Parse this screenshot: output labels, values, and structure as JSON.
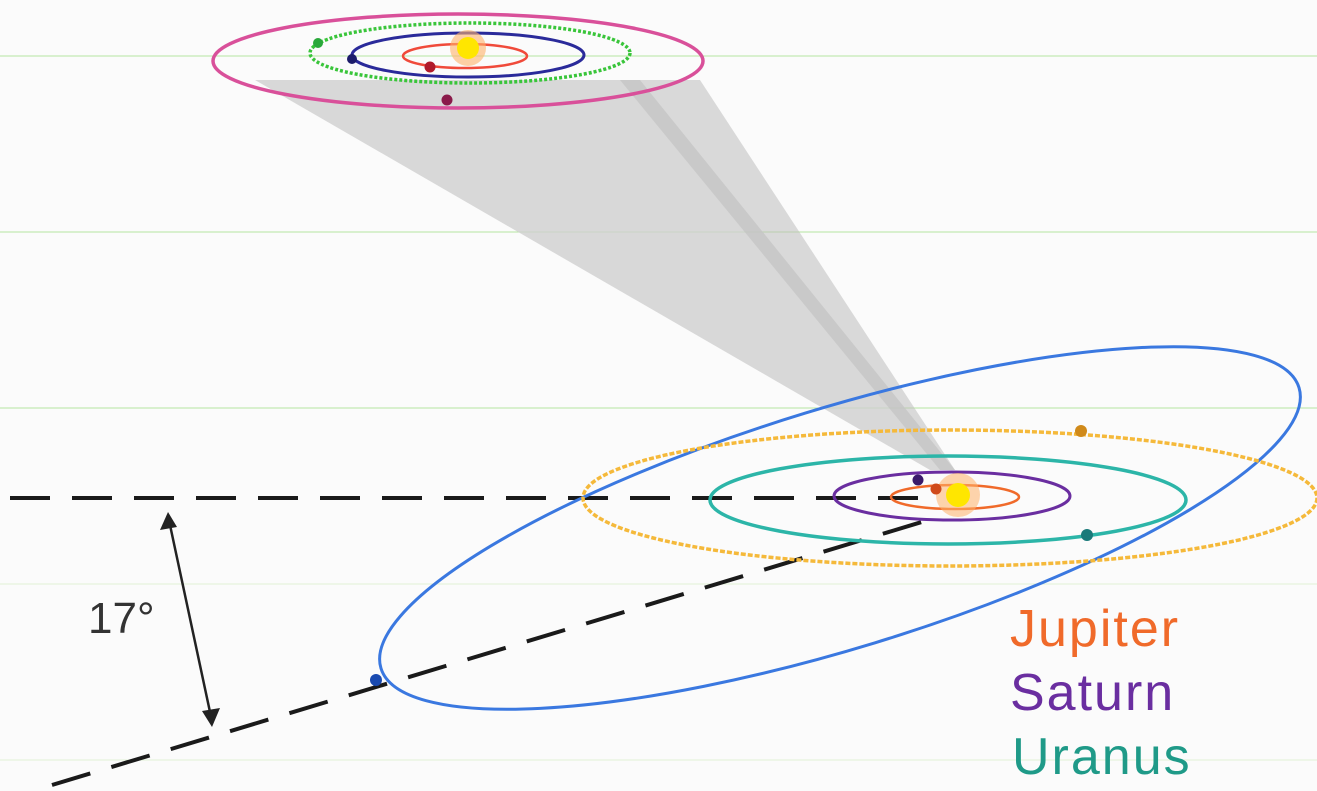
{
  "angle": {
    "label": "17°"
  },
  "legend": [
    {
      "name": "Jupiter",
      "color": "#f06a2a"
    },
    {
      "name": "Saturn",
      "color": "#6a2ea0"
    },
    {
      "name": "Uranus",
      "color": "#1f9a88"
    }
  ],
  "colors": {
    "sun": "#ffe600",
    "jupiter_orbit": "#f06a2a",
    "saturn_orbit": "#6a2ea0",
    "uranus_orbit": "#2cb5a8",
    "neptune_orbit": "#f5b93a",
    "pluto_orbit": "#3a78e0",
    "top_outer_orbit": "#d9509a",
    "top_green_orbit": "#39c53a",
    "top_dark_orbit": "#2a2a9a",
    "top_inner_orbit": "#f04a3a",
    "gridline": "#b6e6a0",
    "projection_cone": "#cfcfcf",
    "dashed_line": "#1a1a1a"
  }
}
